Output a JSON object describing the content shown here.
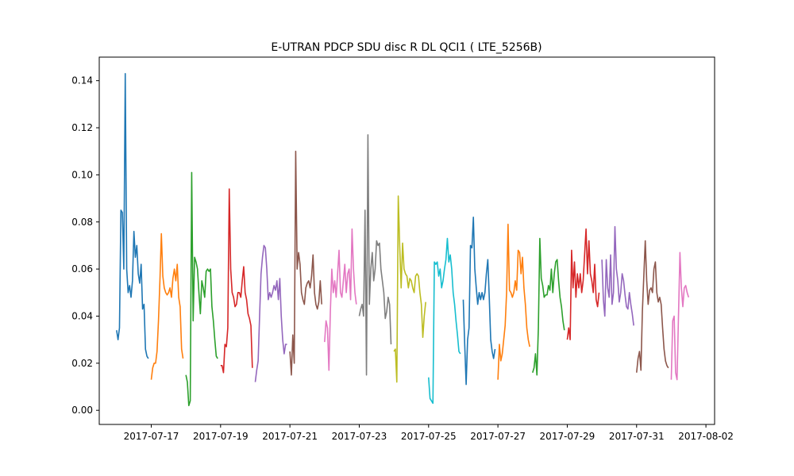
{
  "chart_data": {
    "type": "line",
    "title": "E-UTRAN PDCP SDU disc R DL QCI1 ( LTE_5256B)",
    "xlabel": "",
    "ylabel": "",
    "xlim": [
      "2016-07-15T12:00",
      "2017-08-02T06:00"
    ],
    "ylim": [
      -0.006,
      0.15
    ],
    "x_ticks": [
      "2017-07-17",
      "2017-07-19",
      "2017-07-21",
      "2017-07-23",
      "2017-07-25",
      "2017-07-27",
      "2017-07-29",
      "2017-07-31",
      "2017-08-02"
    ],
    "y_ticks": [
      0.0,
      0.02,
      0.04,
      0.06,
      0.08,
      0.1,
      0.12,
      0.14
    ],
    "y_tick_labels": [
      "0.00",
      "0.02",
      "0.04",
      "0.06",
      "0.08",
      "0.10",
      "0.12",
      "0.14"
    ],
    "grid": false,
    "legend": "none",
    "series": [
      {
        "color": "#1f77b4",
        "start": "2017-07-16T00:00",
        "values": [
          0.034,
          0.03,
          0.035,
          0.085,
          0.084,
          0.06,
          0.143,
          0.06,
          0.05,
          0.053,
          0.048,
          0.055,
          0.076,
          0.065,
          0.07,
          0.058,
          0.054,
          0.062,
          0.043,
          0.045,
          0.026,
          0.023,
          0.022
        ]
      },
      {
        "color": "#ff7f0e",
        "start": "2017-07-17T00:00",
        "values": [
          0.013,
          0.018,
          0.02,
          0.02,
          0.025,
          0.038,
          0.055,
          0.075,
          0.057,
          0.052,
          0.05,
          0.049,
          0.05,
          0.052,
          0.048,
          0.056,
          0.06,
          0.055,
          0.062,
          0.048,
          0.044,
          0.026,
          0.022
        ]
      },
      {
        "color": "#2ca02c",
        "start": "2017-07-18T00:00",
        "values": [
          0.015,
          0.012,
          0.002,
          0.004,
          0.101,
          0.038,
          0.065,
          0.063,
          0.06,
          0.05,
          0.041,
          0.055,
          0.052,
          0.048,
          0.059,
          0.06,
          0.059,
          0.06,
          0.044,
          0.038,
          0.03,
          0.023,
          0.022
        ]
      },
      {
        "color": "#d62728",
        "start": "2017-07-19T00:00",
        "values": [
          0.019,
          0.019,
          0.016,
          0.028,
          0.027,
          0.035,
          0.094,
          0.06,
          0.05,
          0.048,
          0.044,
          0.045,
          0.05,
          0.05,
          0.048,
          0.055,
          0.061,
          0.05,
          0.047,
          0.041,
          0.039,
          0.036,
          0.018
        ]
      },
      {
        "color": "#9467bd",
        "start": "2017-07-20T00:00",
        "values": [
          0.012,
          0.017,
          0.021,
          0.04,
          0.058,
          0.065,
          0.07,
          0.069,
          0.06,
          0.047,
          0.05,
          0.048,
          0.05,
          0.053,
          0.051,
          0.055,
          0.047,
          0.056,
          0.04,
          0.03,
          0.024,
          0.028,
          0.028
        ]
      },
      {
        "color": "#8c564b",
        "start": "2017-07-21T00:00",
        "values": [
          0.025,
          0.015,
          0.032,
          0.02,
          0.11,
          0.06,
          0.067,
          0.062,
          0.05,
          0.047,
          0.045,
          0.052,
          0.054,
          0.055,
          0.052,
          0.057,
          0.066,
          0.05,
          0.045,
          0.043,
          0.046,
          0.055,
          0.045
        ]
      },
      {
        "color": "#e377c2",
        "start": "2017-07-22T00:00",
        "values": [
          0.029,
          0.038,
          0.035,
          0.017,
          0.042,
          0.06,
          0.05,
          0.055,
          0.048,
          0.058,
          0.068,
          0.05,
          0.048,
          0.055,
          0.062,
          0.05,
          0.058,
          0.06,
          0.047,
          0.077,
          0.06,
          0.05,
          0.045
        ]
      },
      {
        "color": "#7f7f7f",
        "start": "2017-07-23T00:00",
        "values": [
          0.04,
          0.043,
          0.045,
          0.04,
          0.085,
          0.015,
          0.117,
          0.045,
          0.06,
          0.067,
          0.055,
          0.06,
          0.072,
          0.07,
          0.071,
          0.06,
          0.055,
          0.05,
          0.039,
          0.042,
          0.048,
          0.045,
          0.028
        ]
      },
      {
        "color": "#bcbd22",
        "start": "2017-07-24T00:00",
        "values": [
          0.025,
          0.026,
          0.012,
          0.091,
          0.07,
          0.052,
          0.071,
          0.06,
          0.058,
          0.057,
          0.052,
          0.056,
          0.055,
          0.052,
          0.05,
          0.057,
          0.058,
          0.057,
          0.05,
          0.045,
          0.031,
          0.04,
          0.046
        ]
      },
      {
        "color": "#17becf",
        "start": "2017-07-25T00:00",
        "values": [
          0.014,
          0.005,
          0.004,
          0.003,
          0.063,
          0.062,
          0.063,
          0.057,
          0.06,
          0.052,
          0.055,
          0.06,
          0.064,
          0.073,
          0.063,
          0.066,
          0.06,
          0.05,
          0.045,
          0.038,
          0.032,
          0.025,
          0.024
        ]
      },
      {
        "color": "#1f77b4",
        "start": "2017-07-26T00:00",
        "values": [
          0.047,
          0.028,
          0.011,
          0.03,
          0.035,
          0.07,
          0.069,
          0.082,
          0.06,
          0.052,
          0.045,
          0.05,
          0.047,
          0.05,
          0.047,
          0.05,
          0.058,
          0.064,
          0.048,
          0.03,
          0.025,
          0.022,
          0.026
        ]
      },
      {
        "color": "#ff7f0e",
        "start": "2017-07-27T00:00",
        "values": [
          0.013,
          0.028,
          0.021,
          0.024,
          0.03,
          0.036,
          0.05,
          0.079,
          0.051,
          0.05,
          0.048,
          0.05,
          0.055,
          0.051,
          0.068,
          0.067,
          0.058,
          0.065,
          0.052,
          0.045,
          0.035,
          0.03,
          0.027
        ]
      },
      {
        "color": "#2ca02c",
        "start": "2017-07-28T00:00",
        "values": [
          0.016,
          0.018,
          0.024,
          0.015,
          0.035,
          0.073,
          0.056,
          0.053,
          0.048,
          0.049,
          0.049,
          0.053,
          0.051,
          0.06,
          0.05,
          0.058,
          0.063,
          0.064,
          0.055,
          0.048,
          0.044,
          0.038,
          0.034
        ]
      },
      {
        "color": "#d62728",
        "start": "2017-07-29T00:00",
        "values": [
          0.03,
          0.035,
          0.03,
          0.068,
          0.052,
          0.063,
          0.048,
          0.058,
          0.052,
          0.058,
          0.05,
          0.055,
          0.066,
          0.077,
          0.058,
          0.072,
          0.058,
          0.055,
          0.05,
          0.062,
          0.047,
          0.044,
          0.05
        ]
      },
      {
        "color": "#9467bd",
        "start": "2017-07-30T00:00",
        "values": [
          0.064,
          0.047,
          0.04,
          0.064,
          0.052,
          0.048,
          0.066,
          0.045,
          0.05,
          0.078,
          0.06,
          0.055,
          0.046,
          0.05,
          0.058,
          0.055,
          0.049,
          0.044,
          0.043,
          0.05,
          0.045,
          0.041,
          0.036
        ]
      },
      {
        "color": "#8c564b",
        "start": "2017-07-31T00:00",
        "values": [
          0.016,
          0.022,
          0.025,
          0.017,
          0.042,
          0.057,
          0.072,
          0.055,
          0.045,
          0.051,
          0.052,
          0.05,
          0.06,
          0.063,
          0.05,
          0.046,
          0.048,
          0.045,
          0.035,
          0.026,
          0.021,
          0.019,
          0.018
        ]
      },
      {
        "color": "#e377c2",
        "start": "2017-08-01T00:00",
        "values": [
          0.013,
          0.038,
          0.04,
          0.016,
          0.013,
          0.04,
          0.067,
          0.052,
          0.044,
          0.052,
          0.053,
          0.05,
          0.048
        ]
      }
    ]
  }
}
